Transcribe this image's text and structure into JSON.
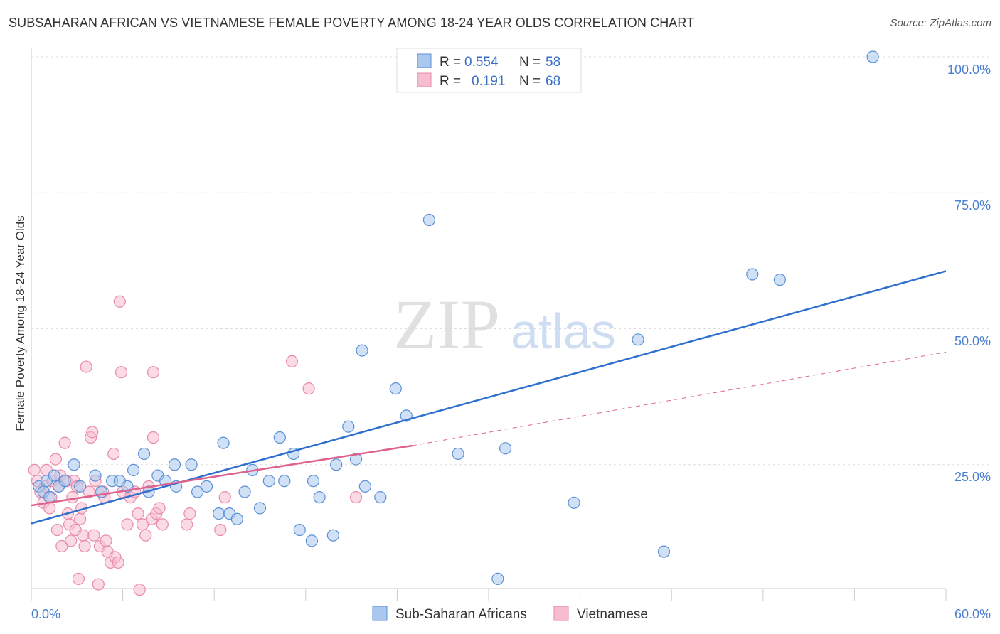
{
  "title": "SUBSAHARAN AFRICAN VS VIETNAMESE FEMALE POVERTY AMONG 18-24 YEAR OLDS CORRELATION CHART",
  "source": "Source: ZipAtlas.com",
  "watermark": {
    "zip": "ZIP",
    "atlas": "atlas"
  },
  "colors": {
    "blue_fill": "#aac8ef",
    "blue_stroke": "#5b8fd6",
    "blue_line": "#2f6fce",
    "pink_fill": "#f6bdd0",
    "pink_stroke": "#e88aa8",
    "pink_line": "#e0618d",
    "tick_label": "#4a7fd0",
    "grid": "#dddddd"
  },
  "legend": {
    "rows": [
      {
        "r_label": "R =",
        "r_value": "0.554",
        "n_label": "N =",
        "n_value": "58"
      },
      {
        "r_label": "R =",
        "r_value": "0.191",
        "n_label": "N =",
        "n_value": "68"
      }
    ]
  },
  "chart_data": {
    "type": "scatter",
    "title": "SUBSAHARAN AFRICAN VS VIETNAMESE FEMALE POVERTY AMONG 18-24 YEAR OLDS CORRELATION CHART",
    "xlabel": "",
    "ylabel": "Female Poverty Among 18-24 Year Olds",
    "xlim": [
      0,
      60
    ],
    "ylim": [
      0,
      100
    ],
    "x_tick_labels": [
      "0.0%",
      "60.0%"
    ],
    "y_ticks": [
      25,
      50,
      75,
      100
    ],
    "y_tick_labels": [
      "25.0%",
      "50.0%",
      "75.0%",
      "100.0%"
    ],
    "legend_position": "top-center",
    "series": [
      {
        "name": "Sub-Saharan Africans",
        "r": 0.554,
        "n": 58,
        "trend": {
          "x0": 0,
          "y0": 14.2,
          "x1": 60,
          "y1": 60.6
        },
        "points": [
          [
            0.5,
            21
          ],
          [
            0.8,
            20
          ],
          [
            1,
            22
          ],
          [
            1.2,
            19
          ],
          [
            1.5,
            23
          ],
          [
            1.8,
            21
          ],
          [
            2.2,
            22
          ],
          [
            2.8,
            25
          ],
          [
            3.2,
            21
          ],
          [
            4.2,
            23
          ],
          [
            4.6,
            20
          ],
          [
            5.3,
            22
          ],
          [
            5.8,
            22
          ],
          [
            6.3,
            21
          ],
          [
            6.7,
            24
          ],
          [
            7.4,
            27
          ],
          [
            7.7,
            20
          ],
          [
            8.3,
            23
          ],
          [
            8.8,
            22
          ],
          [
            9.5,
            21
          ],
          [
            9.4,
            25
          ],
          [
            10.5,
            25
          ],
          [
            10.9,
            20
          ],
          [
            11.5,
            21
          ],
          [
            12.3,
            16
          ],
          [
            12.6,
            29
          ],
          [
            13,
            16
          ],
          [
            13.5,
            15
          ],
          [
            14,
            20
          ],
          [
            14.5,
            24
          ],
          [
            15,
            17
          ],
          [
            15.6,
            22
          ],
          [
            16.3,
            30
          ],
          [
            16.6,
            22
          ],
          [
            17.6,
            13
          ],
          [
            17.2,
            27
          ],
          [
            18.4,
            11
          ],
          [
            18.5,
            22
          ],
          [
            18.9,
            19
          ],
          [
            19.8,
            12
          ],
          [
            20,
            25
          ],
          [
            20.8,
            32
          ],
          [
            21.3,
            26
          ],
          [
            21.7,
            46
          ],
          [
            21.9,
            21
          ],
          [
            22.9,
            19
          ],
          [
            23.9,
            39
          ],
          [
            24.6,
            34
          ],
          [
            26.1,
            70
          ],
          [
            28,
            27
          ],
          [
            30.6,
            4
          ],
          [
            31.1,
            28
          ],
          [
            35.6,
            18
          ],
          [
            39.8,
            48
          ],
          [
            41.5,
            9
          ],
          [
            47.3,
            60
          ],
          [
            49.1,
            59
          ],
          [
            55.2,
            100
          ]
        ]
      },
      {
        "name": "Vietnamese",
        "r": 0.191,
        "n": 68,
        "trend": {
          "x0": 0,
          "y0": 17.5,
          "x1": 25,
          "y1": 28.5
        },
        "trend_extension": {
          "x0": 25,
          "y0": 28.5,
          "x1": 60,
          "y1": 45.7
        },
        "points": [
          [
            0.2,
            24
          ],
          [
            0.4,
            22
          ],
          [
            0.6,
            20
          ],
          [
            0.8,
            18
          ],
          [
            0.9,
            21
          ],
          [
            1,
            24
          ],
          [
            1.2,
            17
          ],
          [
            1.3,
            19
          ],
          [
            1.4,
            22
          ],
          [
            1.6,
            26
          ],
          [
            1.7,
            13
          ],
          [
            1.8,
            21
          ],
          [
            1.9,
            23
          ],
          [
            2,
            10
          ],
          [
            2.2,
            29
          ],
          [
            2.3,
            22
          ],
          [
            2.4,
            16
          ],
          [
            2.5,
            14
          ],
          [
            2.6,
            11
          ],
          [
            2.7,
            19
          ],
          [
            2.8,
            22
          ],
          [
            2.9,
            13
          ],
          [
            3,
            21
          ],
          [
            3.1,
            4
          ],
          [
            3.2,
            15
          ],
          [
            3.3,
            17
          ],
          [
            3.4,
            12
          ],
          [
            3.5,
            10
          ],
          [
            3.6,
            43
          ],
          [
            3.8,
            20
          ],
          [
            3.9,
            30
          ],
          [
            4,
            31
          ],
          [
            4.1,
            12
          ],
          [
            4.2,
            22
          ],
          [
            4.4,
            3
          ],
          [
            4.5,
            10
          ],
          [
            4.7,
            20
          ],
          [
            4.8,
            19
          ],
          [
            4.9,
            11
          ],
          [
            5,
            9
          ],
          [
            5.2,
            7
          ],
          [
            5.4,
            27
          ],
          [
            5.5,
            8
          ],
          [
            5.7,
            7
          ],
          [
            5.8,
            55
          ],
          [
            5.9,
            42
          ],
          [
            6,
            20
          ],
          [
            6.3,
            14
          ],
          [
            6.5,
            19
          ],
          [
            6.8,
            20
          ],
          [
            7,
            16
          ],
          [
            7.1,
            2
          ],
          [
            7.3,
            14
          ],
          [
            7.5,
            12
          ],
          [
            7.7,
            21
          ],
          [
            7.9,
            15
          ],
          [
            8,
            42
          ],
          [
            8,
            30
          ],
          [
            8.2,
            16
          ],
          [
            8.4,
            17
          ],
          [
            8.6,
            14
          ],
          [
            10.2,
            14
          ],
          [
            10.4,
            16
          ],
          [
            12.4,
            13
          ],
          [
            12.7,
            19
          ],
          [
            17.1,
            44
          ],
          [
            18.2,
            39
          ],
          [
            21.3,
            19
          ]
        ]
      }
    ]
  },
  "bottom_legend": [
    "Sub-Saharan Africans",
    "Vietnamese"
  ]
}
